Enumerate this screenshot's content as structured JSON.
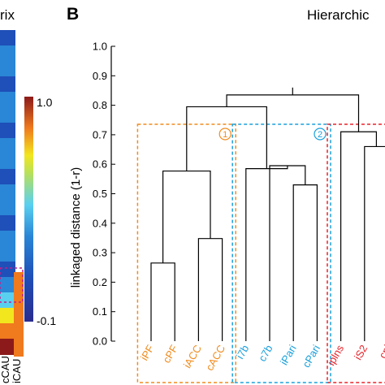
{
  "left_panel": {
    "title_fragment": "rix",
    "colorbar": {
      "max_label": "1.0",
      "min_label": "-0.1"
    },
    "row_labels": [
      "cCAU",
      "iCAU"
    ],
    "colors": [
      "#2a2c8e",
      "#1f4fb8",
      "#2a86d6",
      "#5ad0f0",
      "#f2e61e",
      "#f07a1e",
      "#8c1a1a"
    ]
  },
  "right_panel": {
    "letter": "B",
    "letter_left": "",
    "title_fragment": "Hierarchic"
  },
  "chart_data": {
    "type": "dendrogram",
    "ylabel": "linkaged distance (1-r)",
    "ylim": [
      0,
      1.0
    ],
    "yticks": [
      "0.0",
      "0.1",
      "0.2",
      "0.3",
      "0.4",
      "0.5",
      "0.6",
      "0.7",
      "0.8",
      "0.9",
      "1.0"
    ],
    "leaves": [
      {
        "label": "iPF",
        "color": "#f08c1e"
      },
      {
        "label": "cPF",
        "color": "#f08c1e"
      },
      {
        "label": "iACC",
        "color": "#f08c1e"
      },
      {
        "label": "cACC",
        "color": "#f08c1e"
      },
      {
        "label": "i7b",
        "color": "#1aa0dc"
      },
      {
        "label": "c7b",
        "color": "#1aa0dc"
      },
      {
        "label": "iPari",
        "color": "#1aa0dc"
      },
      {
        "label": "cPari",
        "color": "#1aa0dc"
      },
      {
        "label": "iplns",
        "color": "#e8232a"
      },
      {
        "label": "iS2",
        "color": "#e8232a"
      },
      {
        "label": "cpl",
        "color": "#e8232a"
      }
    ],
    "merges": [
      {
        "a": 0,
        "b": 1,
        "height": 0.265
      },
      {
        "a": 2,
        "b": 3,
        "height": 0.348
      },
      {
        "a": "m0",
        "b": "m1",
        "height": 0.577
      },
      {
        "a": 6,
        "b": 7,
        "height": 0.53
      },
      {
        "a": 5,
        "b": "m3",
        "height": 0.595
      },
      {
        "a": 4,
        "b": "m4",
        "height": 0.585
      },
      {
        "a": "m2",
        "b": "m5",
        "height": 0.795
      },
      {
        "a": 9,
        "b": 10,
        "height": 0.66
      },
      {
        "a": 8,
        "b": "m7",
        "height": 0.71
      },
      {
        "a": "m6",
        "b": "m8",
        "height": 0.835
      }
    ],
    "clusters": [
      {
        "id": "1",
        "color": "#f08c1e",
        "first": 0,
        "last": 3
      },
      {
        "id": "2",
        "color": "#1aa0dc",
        "first": 4,
        "last": 7
      },
      {
        "id": "",
        "color": "#e8232a",
        "first": 8,
        "last": 10
      }
    ]
  }
}
